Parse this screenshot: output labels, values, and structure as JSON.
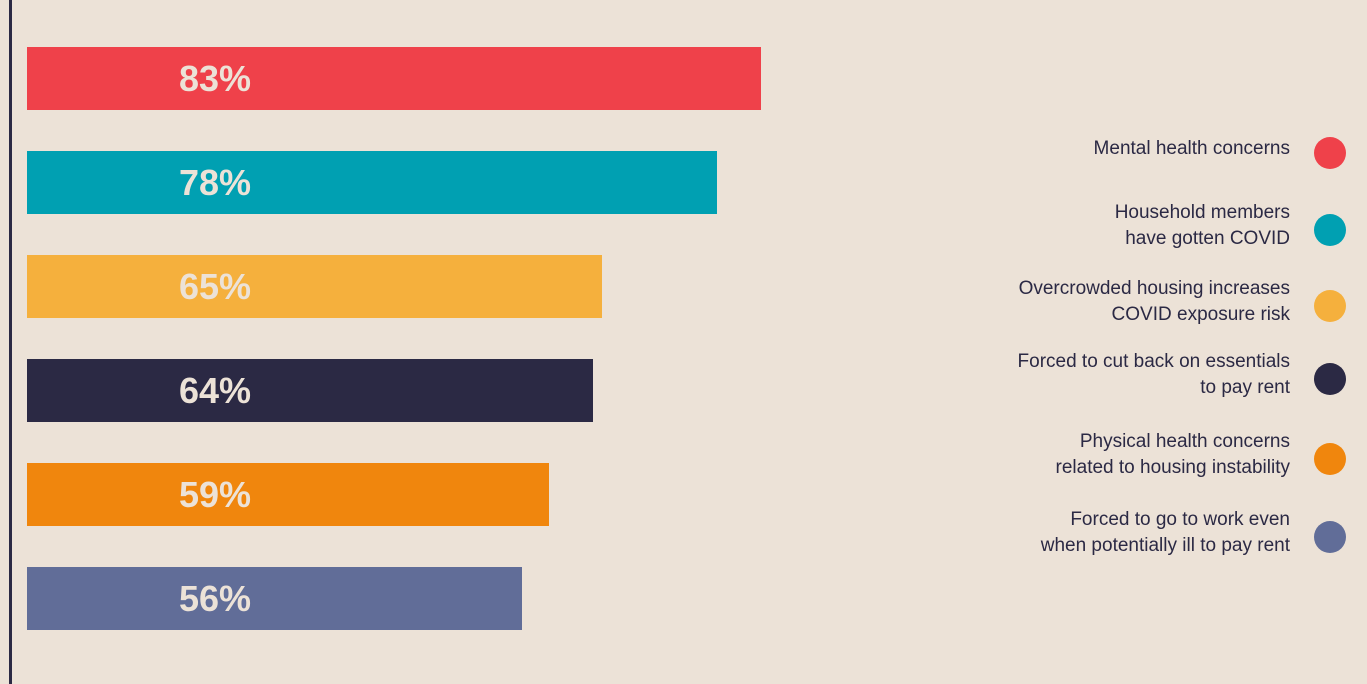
{
  "chart_data": {
    "type": "bar",
    "orientation": "horizontal",
    "title": "",
    "xlabel": "",
    "ylabel": "",
    "xlim": [
      0,
      100
    ],
    "grid": false,
    "legend_position": "right",
    "categories": [
      "Mental health concerns",
      "Household members have gotten COVID",
      "Overcrowded housing increases COVID exposure risk",
      "Forced to cut back on essentials to pay rent",
      "Physical health concerns related to housing instability",
      "Forced to go to work even when potentially ill to pay rent"
    ],
    "values": [
      83,
      78,
      65,
      64,
      59,
      56
    ],
    "value_labels": [
      "83%",
      "78%",
      "65%",
      "64%",
      "59%",
      "56%"
    ],
    "colors": [
      "#ef414a",
      "#00a0b2",
      "#f5b03d",
      "#2b2944",
      "#f0860d",
      "#616d98"
    ],
    "legend": [
      {
        "lines": [
          "Mental health concerns"
        ],
        "color": "#ef414a",
        "icon": "circle-icon"
      },
      {
        "lines": [
          "Household members",
          "have gotten COVID"
        ],
        "color": "#00a0b2",
        "icon": "circle-icon"
      },
      {
        "lines": [
          "Overcrowded housing increases",
          "COVID exposure risk"
        ],
        "color": "#f5b03d",
        "icon": "circle-icon"
      },
      {
        "lines": [
          "Forced to cut back on essentials",
          "to pay rent"
        ],
        "color": "#2b2944",
        "icon": "circle-icon"
      },
      {
        "lines": [
          "Physical health concerns",
          "related to housing instability"
        ],
        "color": "#f0860d",
        "icon": "circle-icon"
      },
      {
        "lines": [
          "Forced to go to work even",
          "when potentially ill to pay rent"
        ],
        "color": "#616d98",
        "icon": "circle-icon"
      }
    ]
  }
}
